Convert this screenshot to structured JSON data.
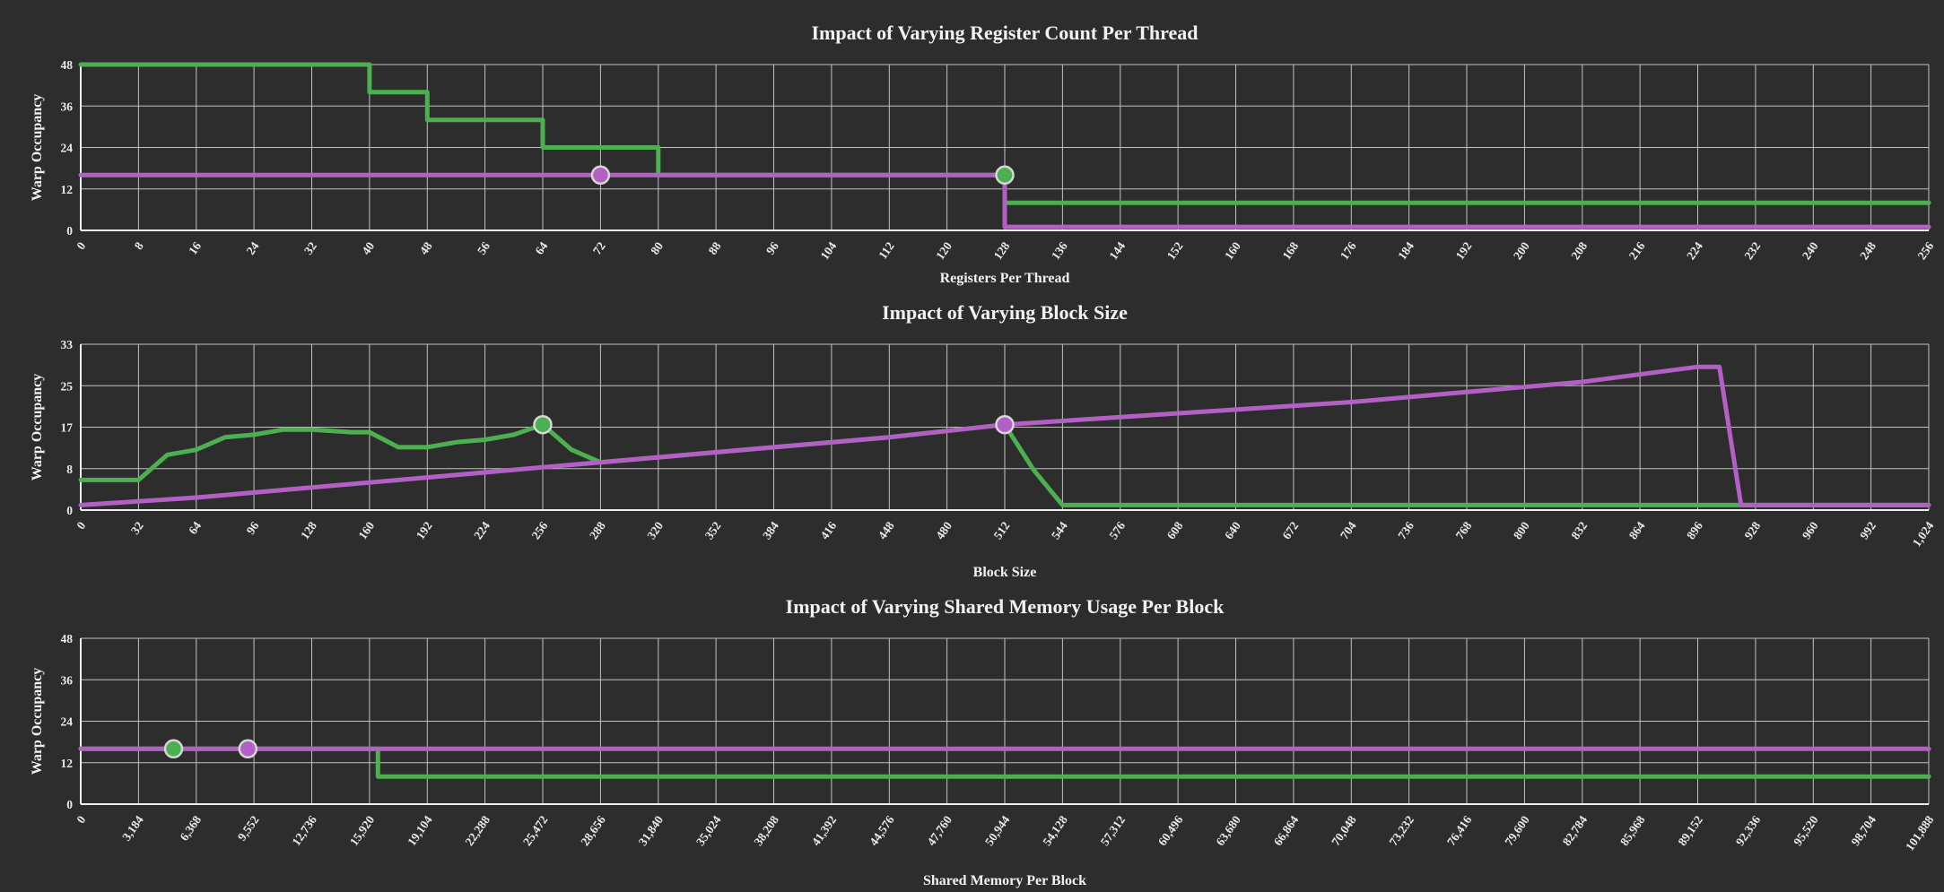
{
  "page": {
    "background": "#2d2d2d"
  },
  "palette": {
    "green": "#4caf50",
    "purple": "#b260c4",
    "grid": "#c2c2c2",
    "axis": "#f0f0f0",
    "text": "#f2f2f2",
    "marker_ring": "#d6d6d6"
  },
  "chart_data": [
    {
      "type": "line",
      "title": "Impact of Varying Register Count Per Thread",
      "xlabel": "Registers Per Thread",
      "ylabel": "Warp Occupancy",
      "x_min": 0,
      "x_max": 256,
      "y_min": 0,
      "y_max": 48,
      "grid": true,
      "x_tick_labels": [
        "0",
        "8",
        "16",
        "24",
        "32",
        "40",
        "48",
        "56",
        "64",
        "72",
        "80",
        "88",
        "96",
        "104",
        "112",
        "120",
        "128",
        "136",
        "144",
        "152",
        "160",
        "168",
        "176",
        "184",
        "192",
        "200",
        "208",
        "216",
        "224",
        "232",
        "240",
        "248",
        "256"
      ],
      "y_tick_labels": [
        "0",
        "12",
        "24",
        "36",
        "48"
      ],
      "series": [
        {
          "name": "green-line",
          "color": "green",
          "points": [
            [
              0,
              48
            ],
            [
              40,
              48
            ],
            [
              40,
              40
            ],
            [
              48,
              40
            ],
            [
              48,
              32
            ],
            [
              64,
              32
            ],
            [
              64,
              24
            ],
            [
              80,
              24
            ],
            [
              80,
              16
            ],
            [
              128,
              16
            ],
            [
              128,
              8
            ],
            [
              256,
              8
            ]
          ]
        },
        {
          "name": "purple-line",
          "color": "purple",
          "points": [
            [
              0,
              16
            ],
            [
              128,
              16
            ],
            [
              128,
              1
            ],
            [
              256,
              1
            ]
          ]
        }
      ],
      "markers": [
        {
          "x": 72,
          "y": 16,
          "color": "purple"
        },
        {
          "x": 128,
          "y": 16,
          "color": "green"
        }
      ]
    },
    {
      "type": "line",
      "title": "Impact of Varying Block Size",
      "xlabel": "Block Size",
      "ylabel": "Warp Occupancy",
      "x_min": 0,
      "x_max": 1024,
      "y_min": 0,
      "y_max": 33,
      "grid": true,
      "x_tick_labels": [
        "0",
        "32",
        "64",
        "96",
        "128",
        "160",
        "192",
        "224",
        "256",
        "288",
        "320",
        "352",
        "384",
        "416",
        "448",
        "480",
        "512",
        "544",
        "576",
        "608",
        "640",
        "672",
        "704",
        "736",
        "768",
        "800",
        "832",
        "864",
        "896",
        "928",
        "960",
        "992",
        "1,024"
      ],
      "y_tick_labels": [
        "0",
        "8",
        "17",
        "25",
        "33"
      ],
      "series": [
        {
          "name": "green-line",
          "color": "green",
          "points": [
            [
              0,
              6
            ],
            [
              32,
              6
            ],
            [
              48,
              11
            ],
            [
              64,
              12
            ],
            [
              80,
              14.5
            ],
            [
              96,
              15
            ],
            [
              112,
              16
            ],
            [
              128,
              16
            ],
            [
              150,
              15.5
            ],
            [
              160,
              15.5
            ],
            [
              176,
              12.5
            ],
            [
              192,
              12.5
            ],
            [
              208,
              13.5
            ],
            [
              224,
              14
            ],
            [
              240,
              15
            ],
            [
              256,
              17
            ],
            [
              272,
              12
            ],
            [
              288,
              9.5
            ],
            [
              320,
              10.5
            ],
            [
              384,
              12.5
            ],
            [
              448,
              14.5
            ],
            [
              512,
              17
            ],
            [
              528,
              8
            ],
            [
              544,
              1
            ],
            [
              896,
              1
            ],
            [
              1024,
              1
            ]
          ]
        },
        {
          "name": "purple-line",
          "color": "purple",
          "points": [
            [
              0,
              1
            ],
            [
              64,
              2.5
            ],
            [
              128,
              4.5
            ],
            [
              192,
              6.5
            ],
            [
              256,
              8.5
            ],
            [
              320,
              10.5
            ],
            [
              384,
              12.5
            ],
            [
              448,
              14.5
            ],
            [
              512,
              17
            ],
            [
              576,
              18.5
            ],
            [
              640,
              20
            ],
            [
              704,
              21.5
            ],
            [
              768,
              23.5
            ],
            [
              832,
              25.5
            ],
            [
              896,
              28.5
            ],
            [
              908,
              28.5
            ],
            [
              920,
              1
            ],
            [
              1024,
              1
            ]
          ]
        }
      ],
      "markers": [
        {
          "x": 256,
          "y": 17,
          "color": "green"
        },
        {
          "x": 512,
          "y": 17,
          "color": "purple"
        }
      ]
    },
    {
      "type": "line",
      "title": "Impact of Varying Shared Memory Usage Per Block",
      "xlabel": "Shared Memory Per Block",
      "ylabel": "Warp Occupancy",
      "x_min": 0,
      "x_max": 101888,
      "y_min": 0,
      "y_max": 48,
      "grid": true,
      "x_tick_labels": [
        "0",
        "3,184",
        "6,368",
        "9,552",
        "12,736",
        "15,920",
        "19,104",
        "22,288",
        "25,472",
        "28,656",
        "31,840",
        "35,024",
        "38,208",
        "41,392",
        "44,576",
        "47,760",
        "50,944",
        "54,128",
        "57,312",
        "60,496",
        "63,680",
        "66,864",
        "70,048",
        "73,232",
        "76,416",
        "79,600",
        "82,784",
        "85,968",
        "89,152",
        "92,336",
        "95,520",
        "98,704",
        "101,888"
      ],
      "y_tick_labels": [
        "0",
        "12",
        "24",
        "36",
        "48"
      ],
      "series": [
        {
          "name": "green-line",
          "color": "green",
          "points": [
            [
              0,
              16
            ],
            [
              16384,
              16
            ],
            [
              16384,
              8
            ],
            [
              101888,
              8
            ]
          ]
        },
        {
          "name": "purple-line",
          "color": "purple",
          "points": [
            [
              0,
              16
            ],
            [
              101888,
              16
            ]
          ]
        }
      ],
      "markers": [
        {
          "x": 5120,
          "y": 16,
          "color": "green"
        },
        {
          "x": 9216,
          "y": 16,
          "color": "purple"
        }
      ]
    }
  ]
}
